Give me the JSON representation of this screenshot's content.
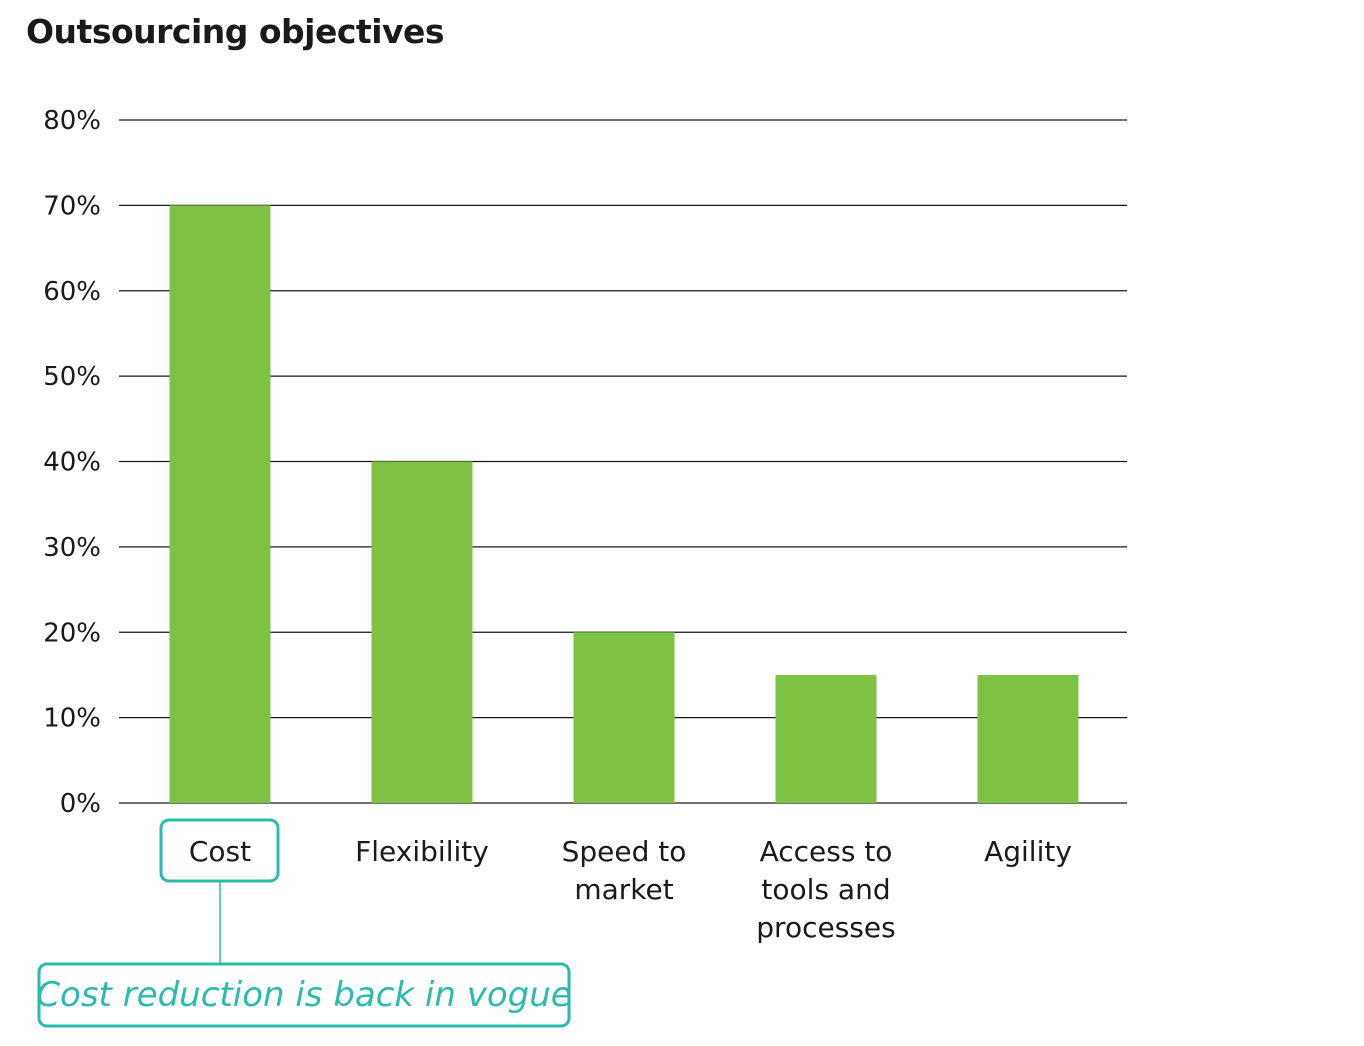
{
  "title": "Outsourcing objectives",
  "colors": {
    "bar": "#7dc242",
    "grid": "#1a1a1a",
    "annotation": "#2bbbad",
    "text": "#1a1a1a"
  },
  "chart_data": {
    "type": "bar",
    "title": "Outsourcing objectives",
    "categories": [
      "Cost",
      "Flexibility",
      "Speed to market",
      "Access to tools and processes",
      "Agility"
    ],
    "category_lines": [
      [
        "Cost"
      ],
      [
        "Flexibility"
      ],
      [
        "Speed to",
        "market"
      ],
      [
        "Access to",
        "tools and",
        "processes"
      ],
      [
        "Agility"
      ]
    ],
    "values": [
      70,
      40,
      20,
      15,
      15
    ],
    "yticks": [
      "0%",
      "10%",
      "20%",
      "30%",
      "40%",
      "50%",
      "60%",
      "70%",
      "80%"
    ],
    "ylim": [
      0,
      80
    ],
    "xlabel": "",
    "ylabel": "",
    "grid": true,
    "highlighted_category": "Cost",
    "annotation": "Cost reduction is back in vogue"
  }
}
